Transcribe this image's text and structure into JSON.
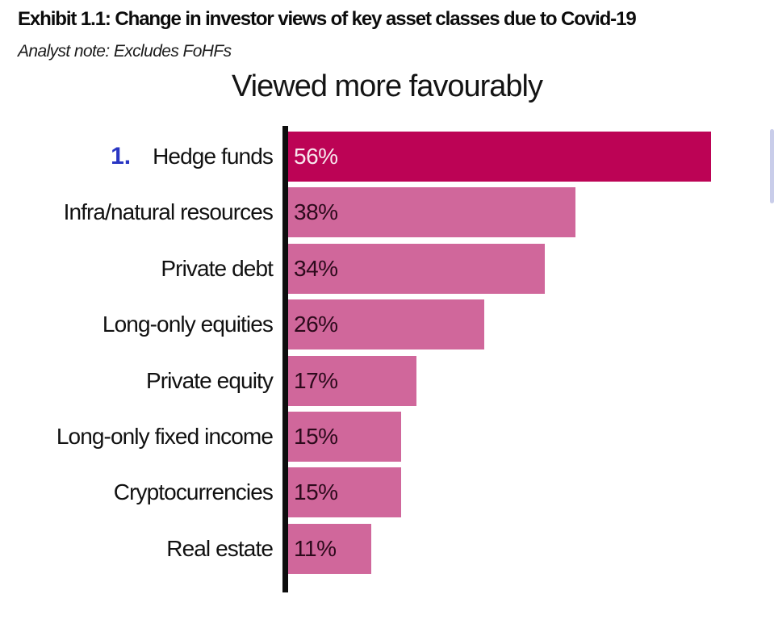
{
  "header": {
    "exhibit_title": "Exhibit 1.1: Change in investor views of key asset classes due to Covid-19",
    "analyst_note": "Analyst note: Excludes FoHFs"
  },
  "chart_data": {
    "type": "bar",
    "orientation": "horizontal",
    "title": "Viewed more favourably",
    "categories": [
      "Hedge funds",
      "Infra/natural resources",
      "Private debt",
      "Long-only equities",
      "Private equity",
      "Long-only fixed income",
      "Cryptocurrencies",
      "Real estate"
    ],
    "values": [
      56,
      38,
      34,
      26,
      17,
      15,
      15,
      11
    ],
    "value_labels": [
      "56%",
      "38%",
      "34%",
      "26%",
      "17%",
      "15%",
      "15%",
      "11%"
    ],
    "rank_marker": {
      "row_index": 0,
      "label": "1."
    },
    "highlight_row_index": 0,
    "xlim": [
      0,
      60
    ],
    "grid": "off",
    "legend": "none",
    "value_label_position": "inside-left"
  },
  "colors": {
    "bar_highlight": "#bc0355",
    "bar_default": "#d0679b",
    "value_text_on_highlight": "#f8e7ee",
    "value_text_on_default": "#2d0a1c",
    "rank_number_blue": "#2936c3",
    "axis_line_black": "#0d0d0d",
    "scrollbar_fragment_lavender": "#c9cdea"
  }
}
